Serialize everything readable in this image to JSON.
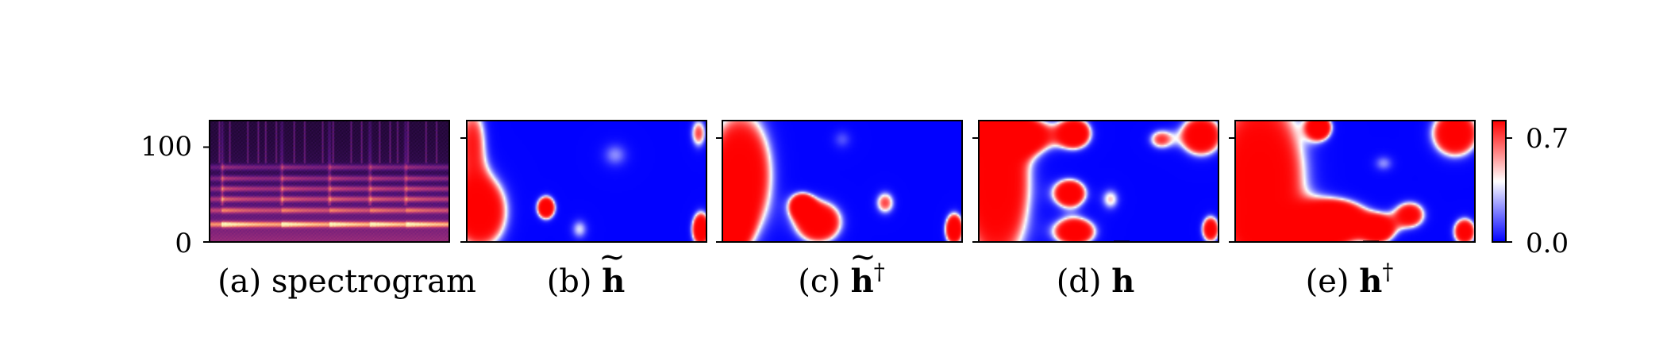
{
  "chart_data": {
    "type": "heatmap",
    "shared_y_axis": {
      "range": [
        0,
        128
      ],
      "ticks": [
        0,
        100
      ],
      "tick_labels": [
        "0",
        "100"
      ]
    },
    "panels": [
      {
        "id": "a",
        "caption_prefix": "(a) ",
        "caption_symbol": "spectrogram",
        "caption_symbol_bold": false,
        "caption_accent": "",
        "caption_superscript": "",
        "kind": "spectrogram",
        "harmonic_rows": [
          18,
          33,
          45,
          56,
          67,
          79
        ],
        "onset_columns": [
          0.05,
          0.3,
          0.5,
          0.67,
          0.82
        ]
      },
      {
        "id": "b",
        "caption_prefix": "(b) ",
        "caption_symbol": "h",
        "caption_symbol_bold": true,
        "caption_accent": "~",
        "caption_superscript": "",
        "kind": "relevance",
        "red_regions": [
          {
            "cx": 0.05,
            "cy": 0.75,
            "rx": 0.12,
            "ry": 0.32,
            "w": 1.0
          },
          {
            "cx": 0.02,
            "cy": 0.15,
            "rx": 0.07,
            "ry": 0.35,
            "w": 0.6
          },
          {
            "cx": 0.33,
            "cy": 0.72,
            "rx": 0.04,
            "ry": 0.1,
            "w": 1.0
          },
          {
            "cx": 0.97,
            "cy": 0.1,
            "rx": 0.04,
            "ry": 0.15,
            "w": 0.55
          },
          {
            "cx": 0.98,
            "cy": 0.9,
            "rx": 0.04,
            "ry": 0.15,
            "w": 1.0
          },
          {
            "cx": 0.62,
            "cy": 0.28,
            "rx": 0.08,
            "ry": 0.15,
            "w": 0.35
          },
          {
            "cx": 0.47,
            "cy": 0.9,
            "rx": 0.05,
            "ry": 0.12,
            "w": 0.4
          }
        ]
      },
      {
        "id": "c",
        "caption_prefix": "(c) ",
        "caption_symbol": "h",
        "caption_symbol_bold": true,
        "caption_accent": "~",
        "caption_superscript": "†",
        "kind": "relevance",
        "red_regions": [
          {
            "cx": 0.07,
            "cy": 0.45,
            "rx": 0.14,
            "ry": 0.55,
            "w": 1.0
          },
          {
            "cx": 0.03,
            "cy": 0.85,
            "rx": 0.07,
            "ry": 0.25,
            "w": 1.0
          },
          {
            "cx": 0.4,
            "cy": 0.84,
            "rx": 0.1,
            "ry": 0.18,
            "w": 1.0
          },
          {
            "cx": 0.33,
            "cy": 0.7,
            "rx": 0.05,
            "ry": 0.1,
            "w": 0.85
          },
          {
            "cx": 0.97,
            "cy": 0.9,
            "rx": 0.04,
            "ry": 0.14,
            "w": 1.0
          },
          {
            "cx": 0.68,
            "cy": 0.68,
            "rx": 0.05,
            "ry": 0.12,
            "w": 0.55
          },
          {
            "cx": 0.5,
            "cy": 0.15,
            "rx": 0.06,
            "ry": 0.12,
            "w": 0.3
          }
        ]
      },
      {
        "id": "d",
        "caption_prefix": "(d) ",
        "caption_symbol": "h",
        "caption_symbol_bold": true,
        "caption_accent": "‾",
        "caption_superscript": "",
        "kind": "relevance",
        "red_regions": [
          {
            "cx": 0.07,
            "cy": 0.5,
            "rx": 0.15,
            "ry": 0.75,
            "w": 1.0
          },
          {
            "cx": 0.15,
            "cy": 0.12,
            "rx": 0.16,
            "ry": 0.14,
            "w": 1.0
          },
          {
            "cx": 0.4,
            "cy": 0.1,
            "rx": 0.07,
            "ry": 0.13,
            "w": 1.0
          },
          {
            "cx": 0.38,
            "cy": 0.6,
            "rx": 0.07,
            "ry": 0.12,
            "w": 1.0
          },
          {
            "cx": 0.4,
            "cy": 0.92,
            "rx": 0.09,
            "ry": 0.12,
            "w": 1.0
          },
          {
            "cx": 0.93,
            "cy": 0.12,
            "rx": 0.09,
            "ry": 0.17,
            "w": 1.0
          },
          {
            "cx": 0.76,
            "cy": 0.15,
            "rx": 0.06,
            "ry": 0.1,
            "w": 0.55
          },
          {
            "cx": 0.55,
            "cy": 0.65,
            "rx": 0.05,
            "ry": 0.12,
            "w": 0.45
          },
          {
            "cx": 0.97,
            "cy": 0.9,
            "rx": 0.04,
            "ry": 0.12,
            "w": 0.85
          }
        ]
      },
      {
        "id": "e",
        "caption_prefix": "(e) ",
        "caption_symbol": "h",
        "caption_symbol_bold": true,
        "caption_accent": "‾",
        "caption_superscript": "†",
        "kind": "relevance",
        "red_regions": [
          {
            "cx": 0.1,
            "cy": 0.5,
            "rx": 0.2,
            "ry": 0.8,
            "w": 1.0
          },
          {
            "cx": 0.3,
            "cy": 0.92,
            "rx": 0.2,
            "ry": 0.15,
            "w": 1.0
          },
          {
            "cx": 0.42,
            "cy": 0.8,
            "rx": 0.13,
            "ry": 0.15,
            "w": 1.0
          },
          {
            "cx": 0.6,
            "cy": 0.9,
            "rx": 0.07,
            "ry": 0.12,
            "w": 0.9
          },
          {
            "cx": 0.92,
            "cy": 0.1,
            "rx": 0.1,
            "ry": 0.2,
            "w": 1.0
          },
          {
            "cx": 0.35,
            "cy": 0.05,
            "rx": 0.05,
            "ry": 0.1,
            "w": 1.0
          },
          {
            "cx": 0.73,
            "cy": 0.78,
            "rx": 0.07,
            "ry": 0.12,
            "w": 0.8
          },
          {
            "cx": 0.96,
            "cy": 0.92,
            "rx": 0.05,
            "ry": 0.12,
            "w": 0.9
          },
          {
            "cx": 0.62,
            "cy": 0.35,
            "rx": 0.06,
            "ry": 0.1,
            "w": 0.35
          }
        ]
      }
    ],
    "colorbar": {
      "range": [
        0.0,
        0.75
      ],
      "ticks": [
        0.0,
        0.7
      ],
      "tick_labels": [
        "0.0",
        "0.7"
      ],
      "colormap": "bwr",
      "colors": {
        "low": "#0000ff",
        "mid": "#ffffff",
        "high": "#ff0000"
      }
    },
    "spectrogram_colormap": "magma"
  }
}
